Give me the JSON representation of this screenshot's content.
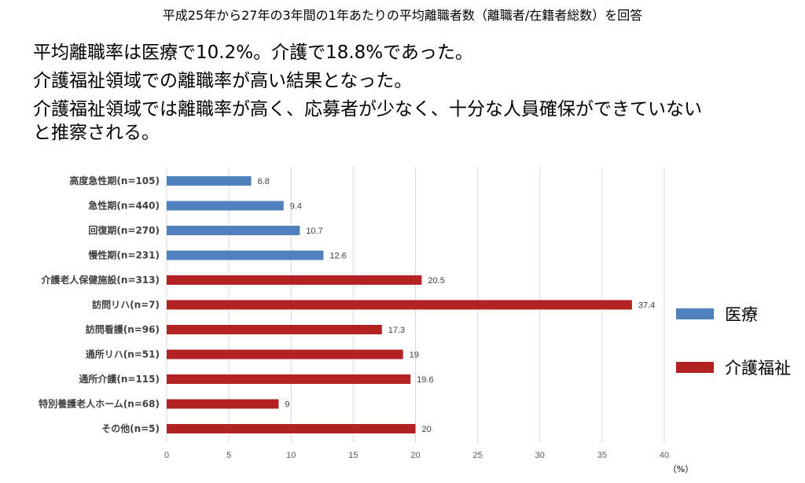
{
  "subtitle": "平成25年から27年の3年間の1年あたりの平均離職者数（離職者/在籍者総数）を回答",
  "headline": [
    "平均離職率は医療で10.2%。介護で18.8%であった。",
    "介護福祉領域での離職率が高い結果となった。",
    "介護福祉領域では離職率が高く、応募者が少なく、十分な人員確保ができていない",
    "と推察される。"
  ],
  "legend": [
    {
      "label": "医療",
      "color": "#4F81BD"
    },
    {
      "label": "介護福祉",
      "color": "#B22222"
    }
  ],
  "chart_data": {
    "type": "bar",
    "orientation": "horizontal",
    "categories": [
      "高度急性期(n=105)",
      "急性期(n=440)",
      "回復期(n=270)",
      "慢性期(n=231)",
      "介護老人保健施設(n=313)",
      "訪問リハ(n=7)",
      "訪問看護(n=96)",
      "通所リハ(n=51)",
      "通所介護(n=115)",
      "特別養護老人ホーム(n=68)",
      "その他(n=5)"
    ],
    "values": [
      6.8,
      9.4,
      10.7,
      12.6,
      20.5,
      37.4,
      17.3,
      19,
      19.6,
      9,
      20
    ],
    "value_labels": [
      "6.8",
      "9.4",
      "10.7",
      "12.6",
      "20.5",
      "37.4",
      "17.3",
      "19",
      "19.6",
      "9",
      "20"
    ],
    "groups": [
      "医療",
      "医療",
      "医療",
      "医療",
      "介護福祉",
      "介護福祉",
      "介護福祉",
      "介護福祉",
      "介護福祉",
      "介護福祉",
      "介護福祉"
    ],
    "xlim": [
      0,
      40
    ],
    "xticks": [
      "0",
      "5",
      "10",
      "15",
      "20",
      "25",
      "30",
      "35",
      "40"
    ],
    "xunit": "（%）",
    "grid": true,
    "legend_position": "right"
  }
}
